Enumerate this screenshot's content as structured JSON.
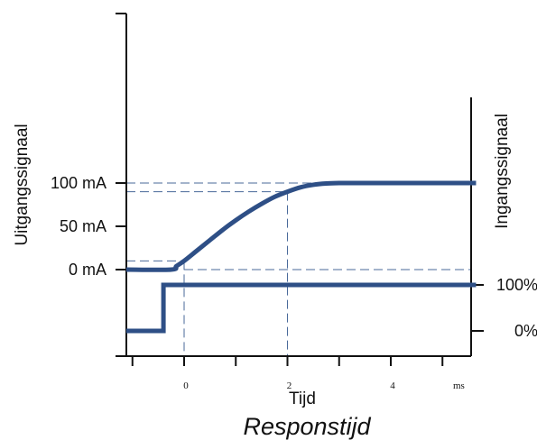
{
  "chart_data": {
    "type": "line",
    "title": "Responstijd",
    "xlabel": "Tijd",
    "x_unit": "ms",
    "ylabel_left": "Uitgangssignaal",
    "ylabel_right": "Ingangssignaal",
    "x_ticks": [
      {
        "value": 0,
        "label": "0"
      },
      {
        "value": 2,
        "label": "2"
      },
      {
        "value": 4,
        "label": "4"
      }
    ],
    "x_range": [
      -1.12,
      5.65
    ],
    "y_left_ticks": [
      {
        "value": 0,
        "label": "0  mA"
      },
      {
        "value": 50,
        "label": "50  mA"
      },
      {
        "value": 100,
        "label": "100  mA"
      }
    ],
    "y_left_range": [
      -50,
      150
    ],
    "y_right_ticks": [
      {
        "value": 0,
        "label": "0%"
      },
      {
        "value": 100,
        "label": "100%"
      }
    ],
    "output_signal": {
      "x": [
        -1.12,
        -0.25,
        -0.15,
        0.0,
        0.25,
        0.5,
        0.75,
        1.0,
        1.25,
        1.5,
        1.75,
        2.0,
        2.25,
        2.5,
        2.75,
        3.0,
        3.25,
        3.5,
        4.0,
        5.65
      ],
      "y": [
        0,
        0,
        4,
        10,
        22,
        34,
        46,
        57,
        67,
        76,
        84,
        90,
        95,
        98,
        99.5,
        100,
        100,
        100,
        100,
        100
      ]
    },
    "input_signal": {
      "x": [
        -1.12,
        -0.4,
        -0.4,
        5.65
      ],
      "y": [
        0,
        0,
        100,
        100
      ]
    },
    "reference_lines": {
      "output_levels": [
        0,
        10,
        90,
        100
      ],
      "times": [
        0,
        2
      ]
    },
    "grid": false,
    "colors": {
      "signal": "#2e4f86",
      "reference": "#4a6a9a",
      "axis": "#111111"
    }
  }
}
